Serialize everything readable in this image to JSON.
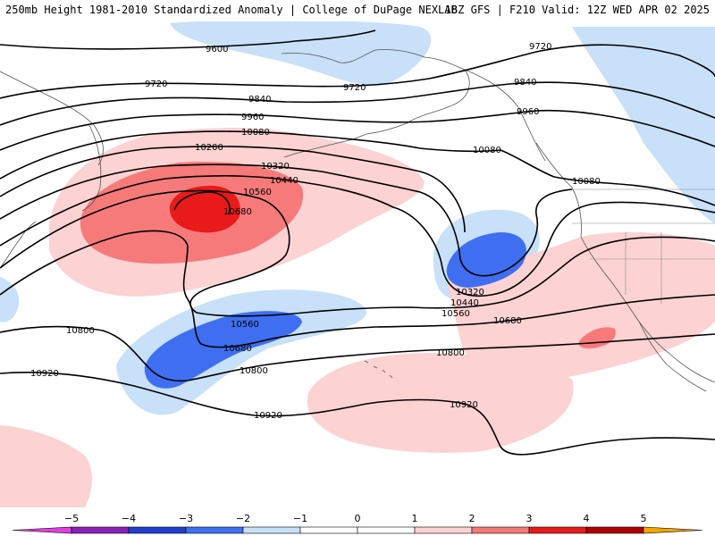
{
  "header": {
    "title_left": "250mb Height 1981-2010 Standardized Anomaly | College of DuPage NEXLAB",
    "title_right": "18Z GFS | F210 Valid: 12Z WED APR 02 2025"
  },
  "colors": {
    "neg5": "#e040e0",
    "neg4": "#8a20b8",
    "neg3": "#1f3ecf",
    "neg2": "#3f6ff0",
    "neg1": "#c8e0f8",
    "zero": "#ffffff",
    "pos1": "#fcd2d2",
    "pos2": "#f67a7a",
    "pos3": "#e81a1a",
    "pos4": "#b00000",
    "pos5": "#f5a600",
    "contour": "#000000",
    "coast": "#555555"
  },
  "colorbar": {
    "ticks": [
      "−5",
      "−4",
      "−3",
      "−2",
      "−1",
      "0",
      "1",
      "2",
      "3",
      "4",
      "5"
    ]
  },
  "contour_labels": [
    {
      "id": "9600-a",
      "text": "9600"
    },
    {
      "id": "9720-a",
      "text": "9720"
    },
    {
      "id": "9720-b",
      "text": "9720"
    },
    {
      "id": "9720-c",
      "text": "9720"
    },
    {
      "id": "9840-a",
      "text": "9840"
    },
    {
      "id": "9840-b",
      "text": "9840"
    },
    {
      "id": "9960-a",
      "text": "9960"
    },
    {
      "id": "9960-b",
      "text": "9960"
    },
    {
      "id": "10080-a",
      "text": "10080"
    },
    {
      "id": "10080-b",
      "text": "10080"
    },
    {
      "id": "10080-c",
      "text": "10080"
    },
    {
      "id": "10200-a",
      "text": "10200"
    },
    {
      "id": "10320-a",
      "text": "10320"
    },
    {
      "id": "10320-b",
      "text": "10320"
    },
    {
      "id": "10440-a",
      "text": "10440"
    },
    {
      "id": "10440-b",
      "text": "10440"
    },
    {
      "id": "10560-a",
      "text": "10560"
    },
    {
      "id": "10560-b",
      "text": "10560"
    },
    {
      "id": "10560-c",
      "text": "10560"
    },
    {
      "id": "10680-a",
      "text": "10680"
    },
    {
      "id": "10680-b",
      "text": "10680"
    },
    {
      "id": "10680-c",
      "text": "10680"
    },
    {
      "id": "10800-a",
      "text": "10800"
    },
    {
      "id": "10800-b",
      "text": "10800"
    },
    {
      "id": "10800-c",
      "text": "10800"
    },
    {
      "id": "10920-a",
      "text": "10920"
    },
    {
      "id": "10920-b",
      "text": "10920"
    },
    {
      "id": "10920-c",
      "text": "10920"
    }
  ]
}
